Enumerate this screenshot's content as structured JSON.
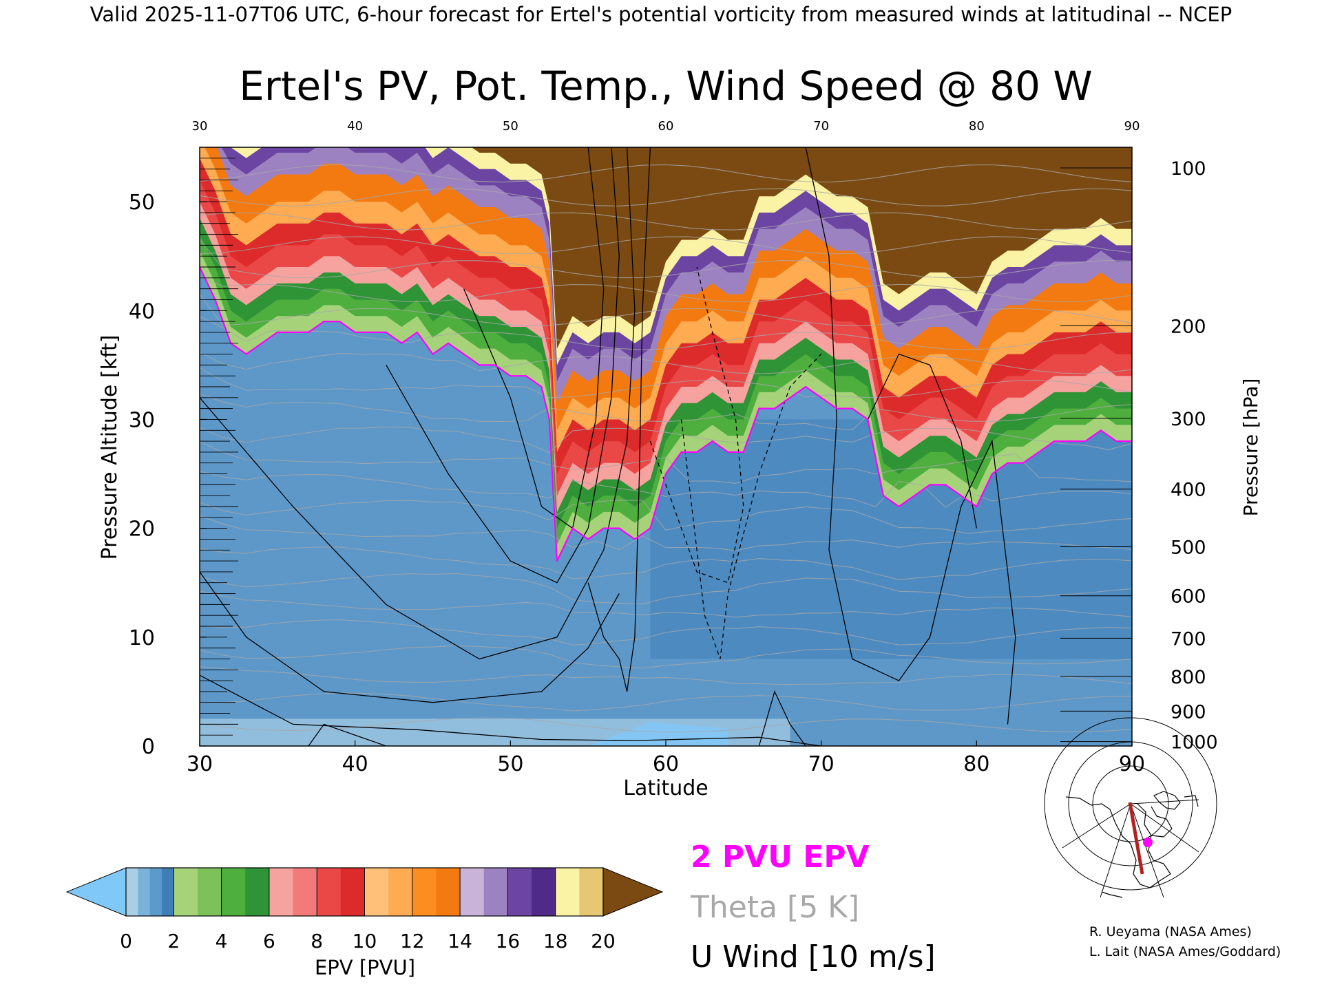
{
  "header": {
    "valid_line": "Valid 2025-11-07T06 UTC, 6-hour forecast for Ertel's potential vorticity from measured winds at latitudinal -- NCEP"
  },
  "chart_data": {
    "type": "heatmap",
    "title": "Ertel's PV, Pot. Temp., Wind Speed @ 80 W",
    "xlabel": "Latitude",
    "ylabel_left": "Pressure Altitude [kft]",
    "ylabel_right": "Pressure [hPa]",
    "xlim": [
      30,
      90
    ],
    "ylim": [
      0,
      55
    ],
    "x_ticks": [
      "30",
      "40",
      "50",
      "60",
      "70",
      "80",
      "90"
    ],
    "top_x_ticks": [
      "30",
      "40",
      "50",
      "60",
      "70",
      "80",
      "90"
    ],
    "y_ticks": [
      "0",
      "10",
      "20",
      "30",
      "40",
      "50"
    ],
    "pressure_ticks": [
      {
        "label": "100",
        "kft": 53.1
      },
      {
        "label": "200",
        "kft": 38.6
      },
      {
        "label": "300",
        "kft": 30.1
      },
      {
        "label": "400",
        "kft": 23.6
      },
      {
        "label": "500",
        "kft": 18.3
      },
      {
        "label": "600",
        "kft": 13.8
      },
      {
        "label": "700",
        "kft": 9.9
      },
      {
        "label": "800",
        "kft": 6.4
      },
      {
        "label": "900",
        "kft": 3.2
      },
      {
        "label": "1000",
        "kft": 0.4
      }
    ],
    "two_pvu_height_kft": {
      "lat": [
        30,
        31,
        32,
        33,
        34,
        35,
        36,
        37,
        38,
        39,
        40,
        41,
        42,
        43,
        44,
        45,
        46,
        47,
        48,
        49,
        50,
        51,
        52,
        52.5,
        53,
        54,
        55,
        56,
        57,
        58,
        59,
        60,
        61,
        62,
        63,
        64,
        65,
        66,
        67,
        68,
        69,
        70,
        71,
        72,
        73,
        74,
        75,
        76,
        77,
        78,
        79,
        80,
        81,
        82,
        83,
        84,
        85,
        86,
        87,
        88,
        89,
        90
      ],
      "kft": [
        44,
        41,
        37,
        36,
        37,
        38,
        38,
        38,
        39,
        39,
        38,
        38,
        38,
        37,
        38,
        36,
        37,
        36,
        35,
        35,
        34,
        34,
        33,
        30,
        17,
        20,
        19,
        20,
        20,
        19,
        20,
        25,
        27,
        27,
        28,
        27,
        27,
        31,
        31,
        32,
        33,
        32,
        31,
        31,
        30,
        23,
        22,
        23,
        24,
        24,
        23,
        22,
        25,
        26,
        26,
        27,
        28,
        28,
        28,
        29,
        28,
        28
      ]
    },
    "colorbar": {
      "label": "EPV [PVU]",
      "ticks": [
        "0",
        "2",
        "4",
        "6",
        "8",
        "10",
        "12",
        "14",
        "16",
        "18",
        "20"
      ],
      "under_color": "#7fc8f8",
      "over_color": "#7b4a12",
      "bins": [
        {
          "from": 0,
          "to": 0.5,
          "color": "#a9cfe7"
        },
        {
          "from": 0.5,
          "to": 1.0,
          "color": "#7ab3da"
        },
        {
          "from": 1.0,
          "to": 1.5,
          "color": "#5b9bcc"
        },
        {
          "from": 1.5,
          "to": 2.0,
          "color": "#3f7fb8"
        },
        {
          "from": 2.0,
          "to": 3.0,
          "color": "#a6d37a"
        },
        {
          "from": 3.0,
          "to": 4.0,
          "color": "#7cc15a"
        },
        {
          "from": 4.0,
          "to": 5.0,
          "color": "#4eae3e"
        },
        {
          "from": 5.0,
          "to": 6.0,
          "color": "#2e9436"
        },
        {
          "from": 6.0,
          "to": 7.0,
          "color": "#f6a3a0"
        },
        {
          "from": 7.0,
          "to": 8.0,
          "color": "#f27a7a"
        },
        {
          "from": 8.0,
          "to": 9.0,
          "color": "#ea4747"
        },
        {
          "from": 9.0,
          "to": 10.0,
          "color": "#dd2a2a"
        },
        {
          "from": 10.0,
          "to": 11.0,
          "color": "#ffc07a"
        },
        {
          "from": 11.0,
          "to": 12.0,
          "color": "#ffab52"
        },
        {
          "from": 12.0,
          "to": 13.0,
          "color": "#fb8d21"
        },
        {
          "from": 13.0,
          "to": 14.0,
          "color": "#f27a10"
        },
        {
          "from": 14.0,
          "to": 15.0,
          "color": "#c9b3d9"
        },
        {
          "from": 15.0,
          "to": 16.0,
          "color": "#9d82c2"
        },
        {
          "from": 16.0,
          "to": 17.0,
          "color": "#6c45a2"
        },
        {
          "from": 17.0,
          "to": 18.0,
          "color": "#4f2a88"
        },
        {
          "from": 18.0,
          "to": 19.0,
          "color": "#faf3a6"
        },
        {
          "from": 19.0,
          "to": 20.0,
          "color": "#e6c872"
        }
      ]
    },
    "legend": [
      "2 PVU EPV",
      "Theta [5 K]",
      "U Wind [10 m/s]"
    ],
    "legend_colors": [
      "#ff00ff",
      "#a8a8a8",
      "#000000"
    ]
  },
  "credits": [
    "R. Ueyama (NASA Ames)",
    "L. Lait (NASA Ames/Goddard)"
  ],
  "colors": {
    "trop": "#5d98c9",
    "trop_deep": "#3f7fb8",
    "pvu_line": "#ff00ff",
    "theta": "#a8a8a8",
    "wind": "#000000",
    "map_marker": "#ff00ff",
    "map_path": "#b22222"
  }
}
